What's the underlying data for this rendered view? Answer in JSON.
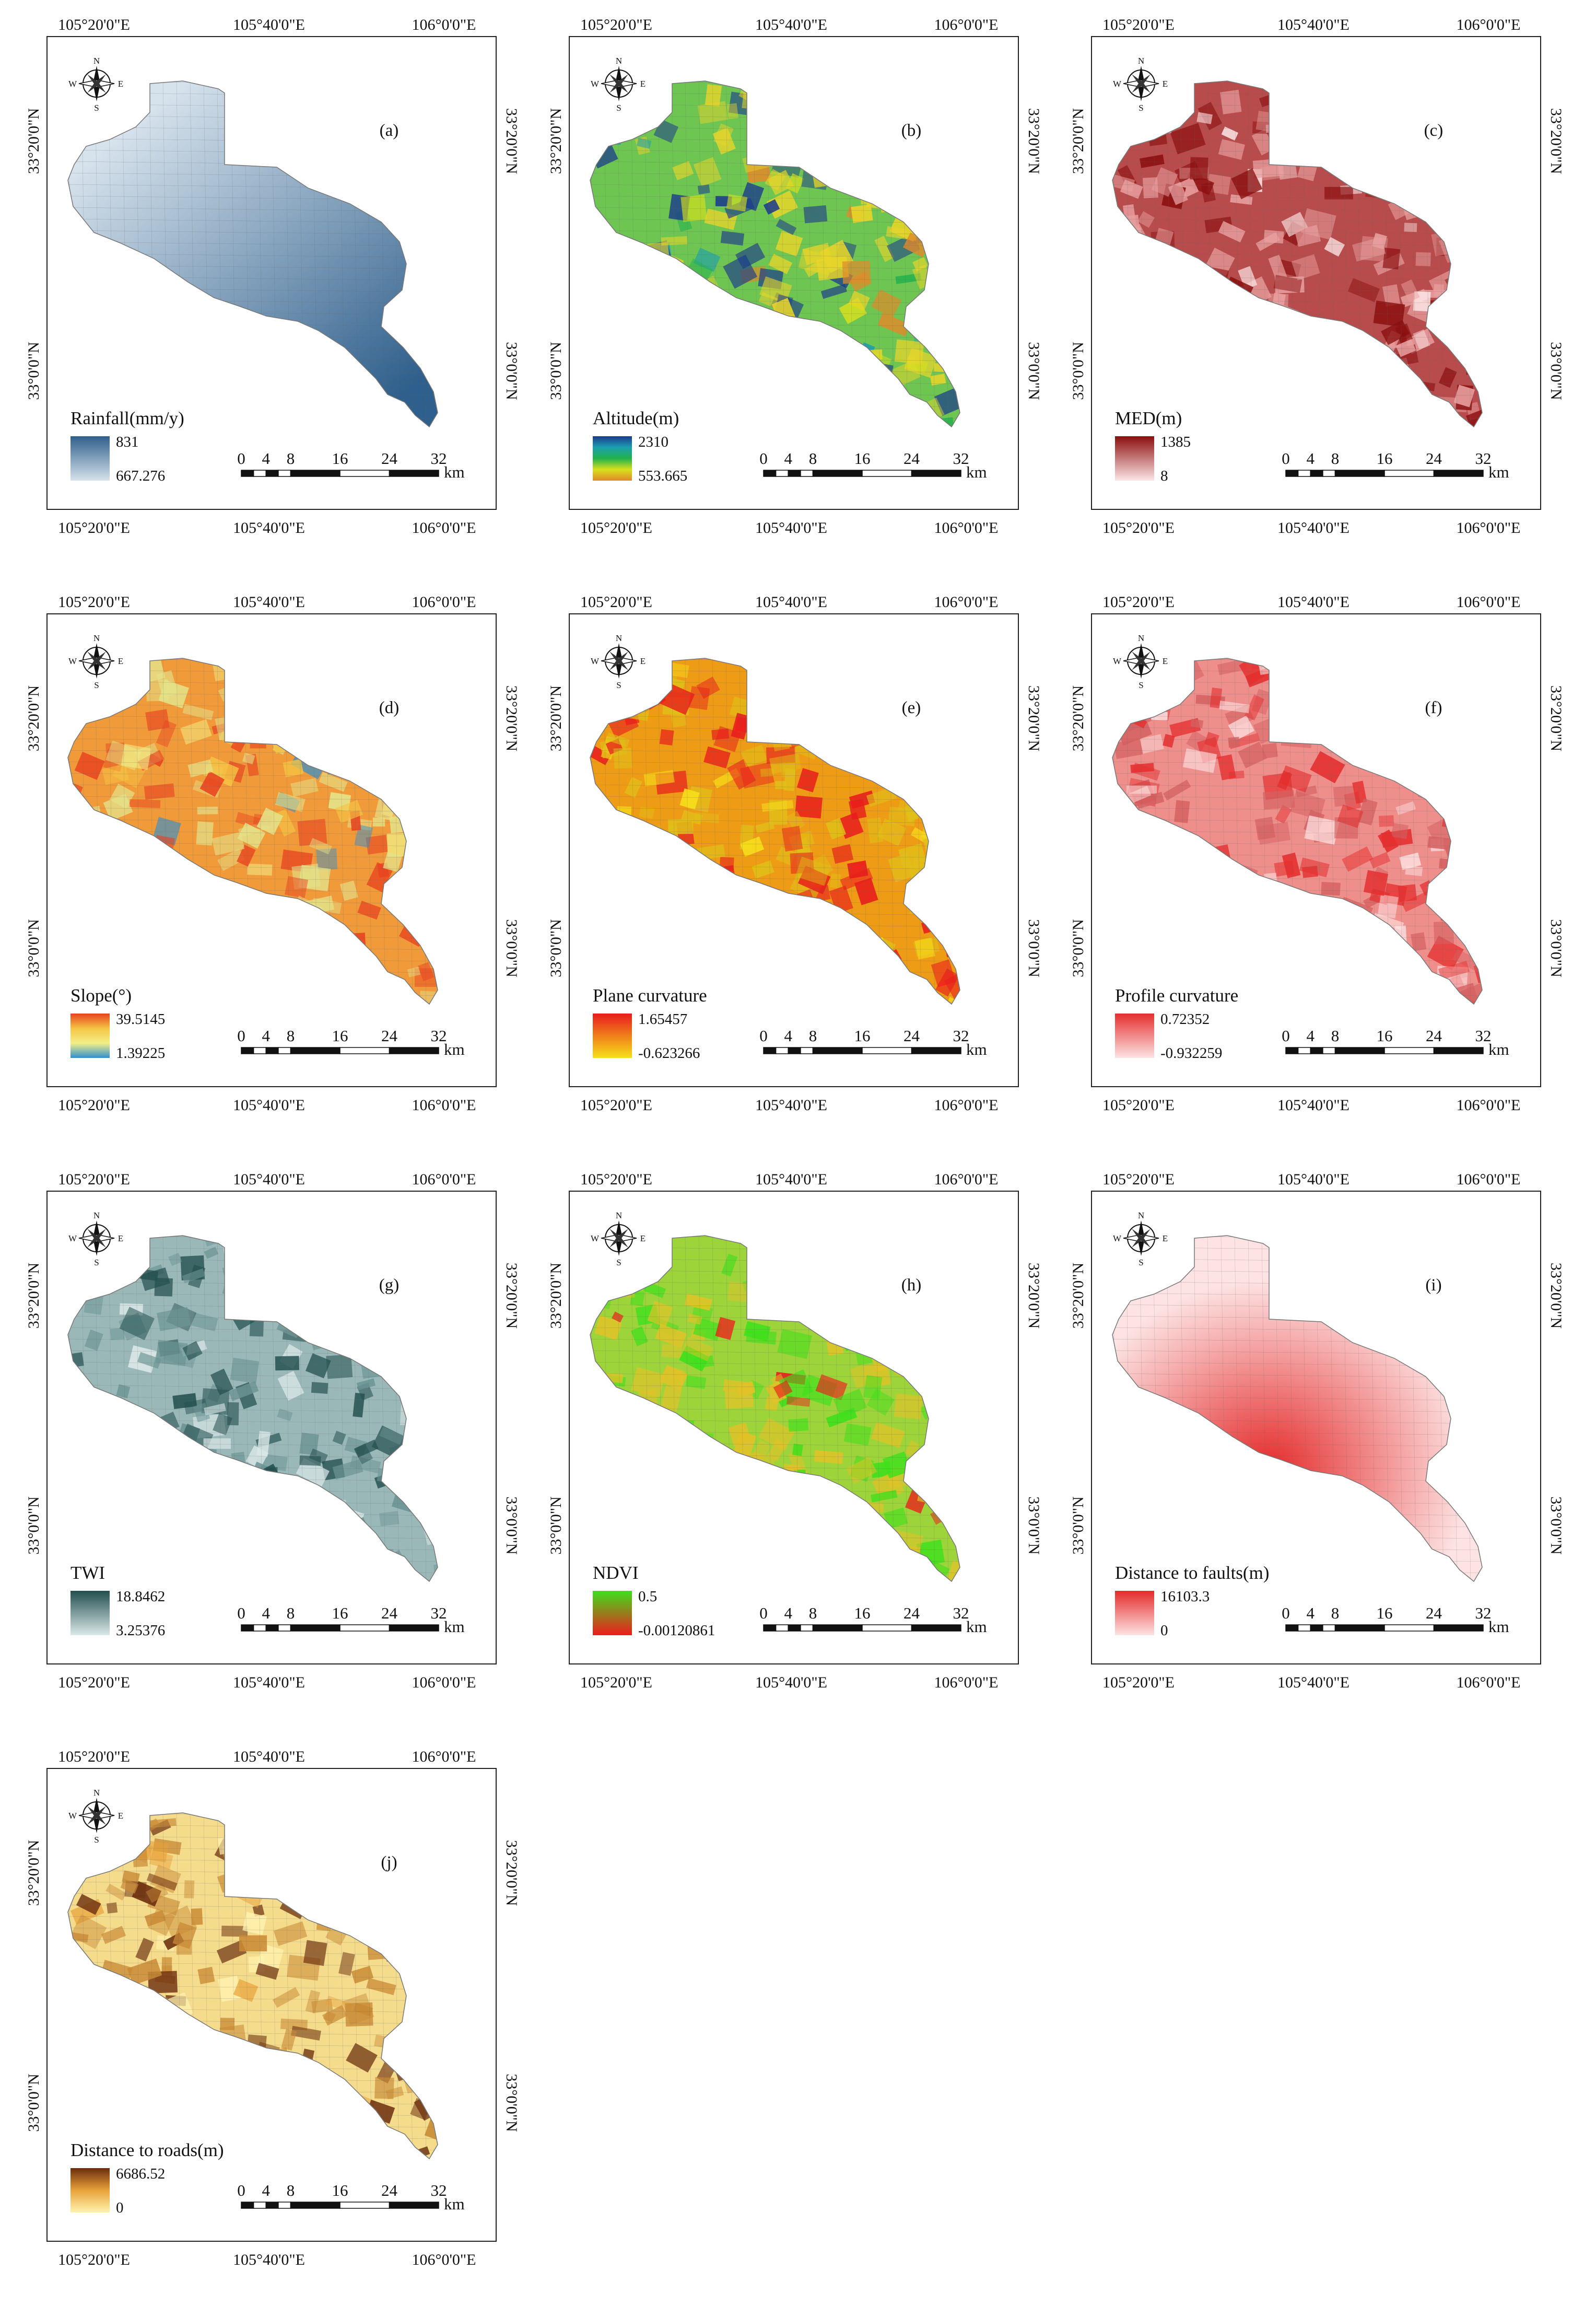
{
  "coords": {
    "lon": [
      "105°20'0\"E",
      "105°40'0\"E",
      "106°0'0\"E"
    ],
    "lat": [
      "33°20'0\"N",
      "33°0'0\"N"
    ]
  },
  "compass": {
    "n": "N",
    "s": "S",
    "e": "E",
    "w": "W"
  },
  "scale": {
    "ticks": [
      "0",
      "4",
      "8",
      "16",
      "24",
      "32"
    ],
    "unit": "km"
  },
  "panels": [
    {
      "label": "(a)",
      "title": "Rainfall(mm/y)",
      "max": "831",
      "min": "667.276",
      "colors": [
        "#2f5f8c",
        "#d6e2ec"
      ],
      "dot": "#a8c1d8",
      "chunk": "#4c79a0",
      "texture": "smooth"
    },
    {
      "label": "(b)",
      "title": "Altitude(m)",
      "max": "2310",
      "min": "553.665",
      "colors": [
        "#1a3a8c",
        "#1c9fb0",
        "#22b24c",
        "#d8e01c",
        "#e08a2a"
      ],
      "dot": "#6fc552",
      "chunk": "#e8d52a",
      "texture": "patchy"
    },
    {
      "label": "(c)",
      "title": "MED(m)",
      "max": "1385",
      "min": "8",
      "colors": [
        "#8b0e0e",
        "#fde6e6"
      ],
      "dot": "#b84b4b",
      "chunk": "#e9a0a0",
      "texture": "patchy"
    },
    {
      "label": "(d)",
      "title": "Slope(°)",
      "max": "39.5145",
      "min": "1.39225",
      "colors": [
        "#e8421f",
        "#f5c443",
        "#f3ef86",
        "#2f8fcf"
      ],
      "dot": "#f09a3a",
      "chunk": "#e4e38a",
      "texture": "patchy"
    },
    {
      "label": "(e)",
      "title": "Plane curvature",
      "max": "1.65457",
      "min": "-0.623266",
      "colors": [
        "#e81c1c",
        "#f7e01a"
      ],
      "dot": "#ee9b16",
      "chunk": "#e0c018",
      "texture": "patchy"
    },
    {
      "label": "(f)",
      "title": "Profile curvature",
      "max": "0.72352",
      "min": "-0.932259",
      "colors": [
        "#e52e2e",
        "#fde3e3"
      ],
      "dot": "#ee8f8c",
      "chunk": "#d46161",
      "texture": "patchy"
    },
    {
      "label": "(g)",
      "title": "TWI",
      "max": "18.8462",
      "min": "3.25376",
      "colors": [
        "#224f4f",
        "#dbe8e8"
      ],
      "dot": "#9bb8b8",
      "chunk": "#6c9494",
      "texture": "patchy"
    },
    {
      "label": "(h)",
      "title": "NDVI",
      "max": "0.5",
      "min": "-0.00120861",
      "colors": [
        "#3ee01c",
        "#ee1c1c"
      ],
      "dot": "#9dd43a",
      "chunk": "#e2c228",
      "texture": "patchy"
    },
    {
      "label": "(i)",
      "title": "Distance to faults(m)",
      "max": "16103.3",
      "min": "0",
      "colors": [
        "#e52a2a",
        "#fde3e3"
      ],
      "dot": "#f4b4b0",
      "chunk": "#e86a66",
      "texture": "gradient"
    },
    {
      "label": "(j)",
      "title": "Distance to roads(m)",
      "max": "6686.52",
      "min": "0",
      "colors": [
        "#6b2d0d",
        "#e8a23a",
        "#fff3b0"
      ],
      "dot": "#f4dc8c",
      "chunk": "#c98a36",
      "texture": "patchy"
    }
  ]
}
